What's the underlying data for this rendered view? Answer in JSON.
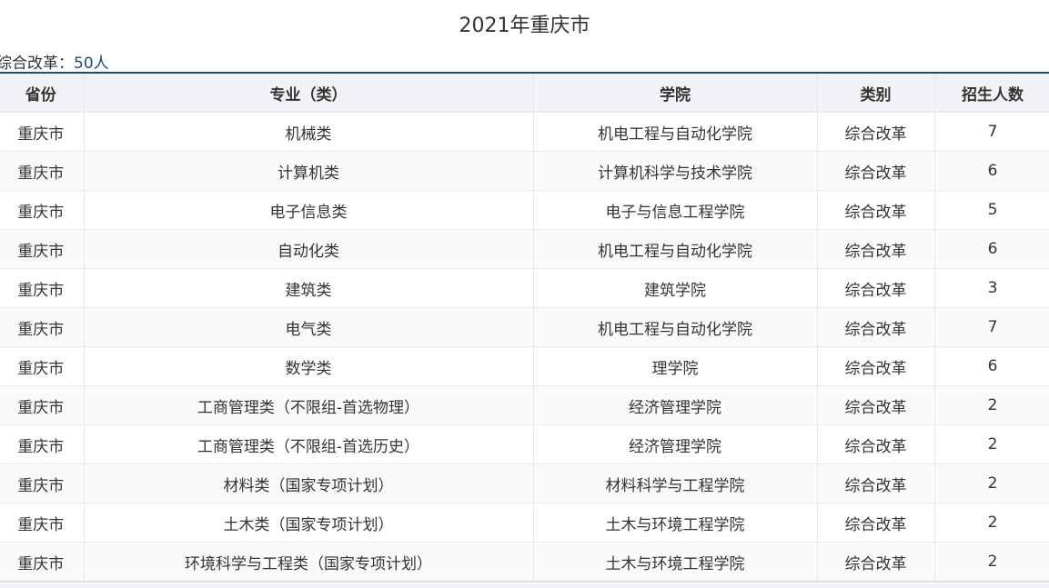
{
  "title": "2021年重庆市",
  "summary": {
    "label": "综合改革：",
    "value": "50人"
  },
  "table": {
    "headers": [
      "省份",
      "专业（类）",
      "学院",
      "类别",
      "招生人数"
    ],
    "rows": [
      [
        "重庆市",
        "机械类",
        "机电工程与自动化学院",
        "综合改革",
        "7"
      ],
      [
        "重庆市",
        "计算机类",
        "计算机科学与技术学院",
        "综合改革",
        "6"
      ],
      [
        "重庆市",
        "电子信息类",
        "电子与信息工程学院",
        "综合改革",
        "5"
      ],
      [
        "重庆市",
        "自动化类",
        "机电工程与自动化学院",
        "综合改革",
        "6"
      ],
      [
        "重庆市",
        "建筑类",
        "建筑学院",
        "综合改革",
        "3"
      ],
      [
        "重庆市",
        "电气类",
        "机电工程与自动化学院",
        "综合改革",
        "7"
      ],
      [
        "重庆市",
        "数学类",
        "理学院",
        "综合改革",
        "6"
      ],
      [
        "重庆市",
        "工商管理类（不限组-首选物理）",
        "经济管理学院",
        "综合改革",
        "2"
      ],
      [
        "重庆市",
        "工商管理类（不限组-首选历史）",
        "经济管理学院",
        "综合改革",
        "2"
      ],
      [
        "重庆市",
        "材料类（国家专项计划）",
        "材料科学与工程学院",
        "综合改革",
        "2"
      ],
      [
        "重庆市",
        "土木类（国家专项计划）",
        "土木与环境工程学院",
        "综合改革",
        "2"
      ],
      [
        "重庆市",
        "环境科学与工程类（国家专项计划）",
        "土木与环境工程学院",
        "综合改革",
        "2"
      ]
    ]
  },
  "colors": {
    "accent": "#1d4a7d",
    "header_bg": "#f0f2f5"
  }
}
